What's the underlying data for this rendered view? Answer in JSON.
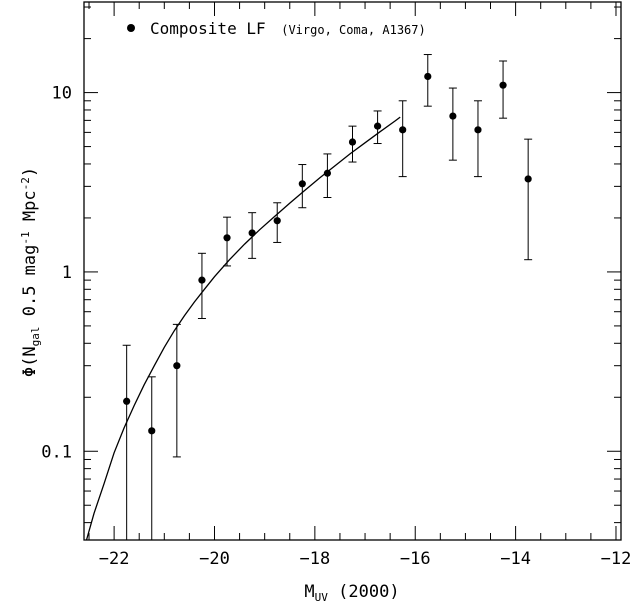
{
  "chart_data": {
    "type": "scatter",
    "xlabel_main": "M",
    "xlabel_sub": "UV",
    "xlabel_suffix": " (2000)",
    "ylabel_pre": "Φ(N",
    "ylabel_sub": "gal",
    "ylabel_mid": " 0.5 mag",
    "ylabel_sup1": "-1",
    "ylabel_mid2": " Mpc",
    "ylabel_sup2": "-2",
    "ylabel_post": ")",
    "xlim": [
      -22.6,
      -11.9
    ],
    "ylim": [
      0.032,
      32
    ],
    "yscale": "log",
    "grid": false,
    "legend": {
      "position": "top-left",
      "label": "Composite LF",
      "sublabel": "(Virgo, Coma, A1367)"
    },
    "x_ticks": [
      {
        "value": -22,
        "label": "−22"
      },
      {
        "value": -20,
        "label": "−20"
      },
      {
        "value": -18,
        "label": "−18"
      },
      {
        "value": -16,
        "label": "−16"
      },
      {
        "value": -14,
        "label": "−14"
      },
      {
        "value": -12,
        "label": "−12"
      }
    ],
    "y_ticks": [
      {
        "value": 0.1,
        "label": "0.1"
      },
      {
        "value": 1,
        "label": "1"
      },
      {
        "value": 10,
        "label": "10"
      }
    ],
    "series": [
      {
        "name": "Composite LF",
        "points": [
          {
            "x": -21.75,
            "y": 0.19,
            "lo": 0.001,
            "hi": 0.39
          },
          {
            "x": -21.25,
            "y": 0.13,
            "lo": 0.001,
            "hi": 0.26
          },
          {
            "x": -20.75,
            "y": 0.3,
            "lo": 0.093,
            "hi": 0.51
          },
          {
            "x": -20.25,
            "y": 0.9,
            "lo": 0.55,
            "hi": 1.27
          },
          {
            "x": -19.75,
            "y": 1.55,
            "lo": 1.08,
            "hi": 2.02
          },
          {
            "x": -19.25,
            "y": 1.65,
            "lo": 1.19,
            "hi": 2.14
          },
          {
            "x": -18.75,
            "y": 1.93,
            "lo": 1.46,
            "hi": 2.43
          },
          {
            "x": -18.25,
            "y": 3.1,
            "lo": 2.28,
            "hi": 3.97
          },
          {
            "x": -17.75,
            "y": 3.55,
            "lo": 2.6,
            "hi": 4.55
          },
          {
            "x": -17.25,
            "y": 5.3,
            "lo": 4.1,
            "hi": 6.5
          },
          {
            "x": -16.75,
            "y": 6.5,
            "lo": 5.2,
            "hi": 7.9
          },
          {
            "x": -16.25,
            "y": 6.2,
            "lo": 3.4,
            "hi": 9.0
          },
          {
            "x": -15.75,
            "y": 12.3,
            "lo": 8.4,
            "hi": 16.3
          },
          {
            "x": -15.25,
            "y": 7.4,
            "lo": 4.2,
            "hi": 10.6
          },
          {
            "x": -14.75,
            "y": 6.2,
            "lo": 3.4,
            "hi": 9.0
          },
          {
            "x": -14.25,
            "y": 11.0,
            "lo": 7.2,
            "hi": 15.0
          },
          {
            "x": -13.75,
            "y": 3.3,
            "lo": 1.17,
            "hi": 5.5
          }
        ]
      }
    ],
    "fit_curve": {
      "x": [
        -22.55,
        -22.4,
        -22.2,
        -22.0,
        -21.8,
        -21.6,
        -21.4,
        -21.2,
        -21.0,
        -20.8,
        -20.6,
        -20.4,
        -20.2,
        -20.0,
        -19.7,
        -19.4,
        -19.1,
        -18.8,
        -18.5,
        -18.2,
        -17.9,
        -17.6,
        -17.3,
        -17.0,
        -16.7,
        -16.4,
        -16.3
      ],
      "y": [
        0.032,
        0.045,
        0.066,
        0.098,
        0.135,
        0.18,
        0.235,
        0.3,
        0.38,
        0.47,
        0.57,
        0.68,
        0.8,
        0.94,
        1.17,
        1.43,
        1.72,
        2.04,
        2.42,
        2.85,
        3.35,
        3.9,
        4.55,
        5.25,
        6.05,
        6.95,
        7.3
      ]
    }
  }
}
